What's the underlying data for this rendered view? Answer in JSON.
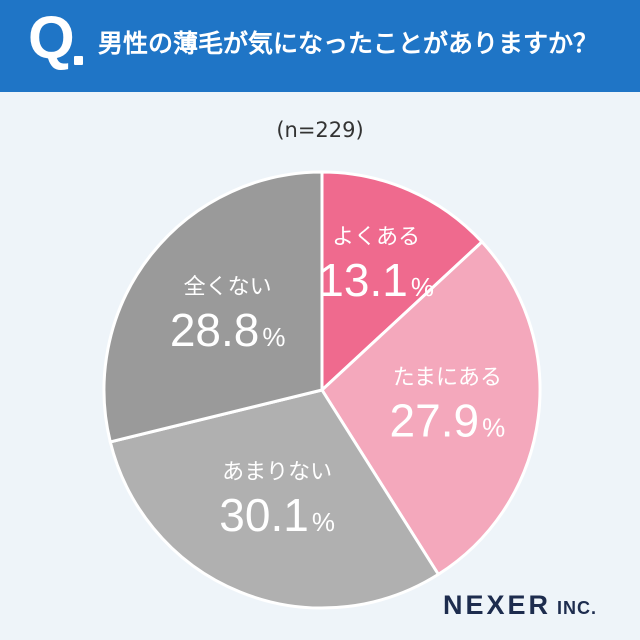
{
  "header": {
    "q_label": "Q",
    "question": "男性の薄毛が気になったことがありますか？"
  },
  "sample_size": "(n=229)",
  "colors": {
    "header_bg": "#1f75c6",
    "often": "#ef6a8e",
    "sometimes": "#f4a8bc",
    "rarely": "#b0b0b0",
    "never": "#9a9a9a"
  },
  "chart_data": {
    "type": "pie",
    "start_angle_deg": 0,
    "direction": "clockwise",
    "slices": [
      {
        "label": "よくある",
        "value": 13.1,
        "display": "13.1",
        "unit": "%"
      },
      {
        "label": "たまにある",
        "value": 27.9,
        "display": "27.9",
        "unit": "%"
      },
      {
        "label": "あまりない",
        "value": 30.1,
        "display": "30.1",
        "unit": "%"
      },
      {
        "label": "全くない",
        "value": 28.8,
        "display": "28.8",
        "unit": "%"
      }
    ]
  },
  "brand": {
    "name": "NEXER",
    "suffix": "INC."
  }
}
